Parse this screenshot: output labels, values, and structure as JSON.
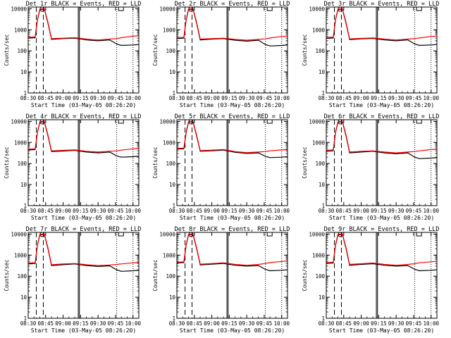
{
  "figure": {
    "background": "#ffffff",
    "colors": {
      "events": "#000000",
      "lld": "#ff0000",
      "axes": "#000000"
    },
    "common": {
      "xlabel": "Start Time (03-May-05 08:26:20)",
      "ylabel": "Counts/sec",
      "x_ticks": [
        "08:30",
        "08:45",
        "09:00",
        "09:15",
        "09:30",
        "09:45",
        "10:00"
      ],
      "y_ticks": [
        "1",
        "10",
        "100",
        "1000",
        "10000"
      ],
      "y_scale": "log",
      "ylim": [
        1,
        12000
      ],
      "xlim": [
        "08:30",
        "10:05"
      ]
    }
  },
  "chart_data": [
    {
      "type": "line",
      "title": "Det_1r BLACK = Events, RED = LLD",
      "series": [
        {
          "name": "Events",
          "color": "#000000",
          "x": [
            "08:30",
            "08:36",
            "08:38",
            "08:40",
            "08:42",
            "08:44",
            "08:47",
            "08:50",
            "09:00",
            "09:10",
            "09:20",
            "09:30",
            "09:40",
            "09:46",
            "09:50",
            "10:00",
            "10:05"
          ],
          "y": [
            400,
            420,
            3000,
            9000,
            9500,
            9000,
            2000,
            350,
            380,
            400,
            330,
            300,
            330,
            210,
            180,
            190,
            200
          ]
        },
        {
          "name": "LLD",
          "color": "#ff0000",
          "x": [
            "08:30",
            "08:36",
            "08:38",
            "08:40",
            "08:42",
            "08:44",
            "08:47",
            "08:50",
            "09:00",
            "09:10",
            "09:20",
            "09:30",
            "09:40",
            "09:46",
            "09:50",
            "10:00",
            "10:05"
          ],
          "y": [
            440,
            460,
            3200,
            9500,
            10000,
            9500,
            2200,
            380,
            400,
            420,
            360,
            330,
            360,
            380,
            420,
            500,
            520
          ]
        }
      ],
      "markers": {
        "dashed": [
          "08:37",
          "08:43"
        ],
        "solid": [
          "09:13",
          "09:14"
        ],
        "dotted": [
          "09:46",
          "10:00"
        ]
      }
    },
    {
      "type": "line",
      "title": "Det_2r BLACK = Events, RED = LLD",
      "series": [
        {
          "name": "Events",
          "color": "#000000",
          "x": [
            "08:30",
            "08:36",
            "08:38",
            "08:40",
            "08:42",
            "08:44",
            "08:47",
            "08:50",
            "09:00",
            "09:10",
            "09:20",
            "09:30",
            "09:40",
            "09:46",
            "09:50",
            "10:00",
            "10:05"
          ],
          "y": [
            380,
            400,
            3000,
            9000,
            9500,
            9000,
            2000,
            330,
            360,
            380,
            320,
            290,
            320,
            200,
            170,
            180,
            190
          ]
        },
        {
          "name": "LLD",
          "color": "#ff0000",
          "x": [
            "08:30",
            "08:36",
            "08:38",
            "08:40",
            "08:42",
            "08:44",
            "08:47",
            "08:50",
            "09:00",
            "09:10",
            "09:20",
            "09:30",
            "09:40",
            "09:46",
            "09:50",
            "10:00",
            "10:05"
          ],
          "y": [
            420,
            440,
            3200,
            9500,
            10000,
            9500,
            2200,
            360,
            380,
            400,
            350,
            320,
            350,
            370,
            410,
            480,
            500
          ]
        }
      ],
      "markers": {
        "dashed": [
          "08:37",
          "08:43"
        ],
        "solid": [
          "09:13",
          "09:14"
        ],
        "dotted": [
          "09:46",
          "10:00"
        ]
      }
    },
    {
      "type": "line",
      "title": "Det_3r BLACK = Events, RED = LLD",
      "series": [
        {
          "name": "Events",
          "color": "#000000",
          "x": [
            "08:30",
            "08:36",
            "08:38",
            "08:40",
            "08:42",
            "08:44",
            "08:47",
            "08:50",
            "09:00",
            "09:10",
            "09:20",
            "09:30",
            "09:40",
            "09:46",
            "09:50",
            "10:00",
            "10:05"
          ],
          "y": [
            390,
            410,
            3000,
            9000,
            9500,
            9000,
            2000,
            340,
            370,
            390,
            330,
            300,
            330,
            210,
            180,
            190,
            200
          ]
        },
        {
          "name": "LLD",
          "color": "#ff0000",
          "x": [
            "08:30",
            "08:36",
            "08:38",
            "08:40",
            "08:42",
            "08:44",
            "08:47",
            "08:50",
            "09:00",
            "09:10",
            "09:20",
            "09:30",
            "09:40",
            "09:46",
            "09:50",
            "10:00",
            "10:05"
          ],
          "y": [
            430,
            450,
            3200,
            9500,
            10000,
            9500,
            2200,
            370,
            390,
            410,
            360,
            330,
            360,
            380,
            410,
            480,
            500
          ]
        }
      ],
      "markers": {
        "dashed": [
          "08:37",
          "08:43"
        ],
        "solid": [
          "09:13",
          "09:14"
        ],
        "dotted": [
          "09:46",
          "10:00"
        ]
      }
    },
    {
      "type": "line",
      "title": "Det_4r BLACK = Events, RED = LLD",
      "series": [
        {
          "name": "Events",
          "color": "#000000",
          "x": [
            "08:30",
            "08:36",
            "08:38",
            "08:40",
            "08:42",
            "08:44",
            "08:47",
            "08:50",
            "09:00",
            "09:10",
            "09:20",
            "09:30",
            "09:40",
            "09:46",
            "09:50",
            "10:00",
            "10:05"
          ],
          "y": [
            440,
            460,
            3000,
            9000,
            9500,
            9000,
            2000,
            370,
            390,
            420,
            350,
            320,
            350,
            230,
            200,
            210,
            220
          ]
        },
        {
          "name": "LLD",
          "color": "#ff0000",
          "x": [
            "08:30",
            "08:36",
            "08:38",
            "08:40",
            "08:42",
            "08:44",
            "08:47",
            "08:50",
            "09:00",
            "09:10",
            "09:20",
            "09:30",
            "09:40",
            "09:46",
            "09:50",
            "10:00",
            "10:05"
          ],
          "y": [
            480,
            500,
            3200,
            9500,
            10000,
            9500,
            2200,
            400,
            420,
            440,
            380,
            350,
            380,
            400,
            430,
            500,
            520
          ]
        }
      ],
      "markers": {
        "dashed": [
          "08:37",
          "08:43"
        ],
        "solid": [
          "09:13",
          "09:14"
        ],
        "dotted": [
          "09:46",
          "10:00"
        ]
      }
    },
    {
      "type": "line",
      "title": "Det_5r BLACK = Events, RED = LLD",
      "series": [
        {
          "name": "Events",
          "color": "#000000",
          "x": [
            "08:30",
            "08:36",
            "08:38",
            "08:40",
            "08:42",
            "08:44",
            "08:47",
            "08:50",
            "09:00",
            "09:10",
            "09:20",
            "09:30",
            "09:40",
            "09:46",
            "09:50",
            "10:00",
            "10:05"
          ],
          "y": [
            480,
            500,
            3000,
            9000,
            9500,
            9000,
            2000,
            380,
            400,
            430,
            340,
            300,
            320,
            220,
            190,
            200,
            210
          ]
        },
        {
          "name": "LLD",
          "color": "#ff0000",
          "x": [
            "08:30",
            "08:36",
            "08:38",
            "08:40",
            "08:42",
            "08:44",
            "08:47",
            "08:50",
            "09:00",
            "09:10",
            "09:20",
            "09:30",
            "09:40",
            "09:46",
            "09:50",
            "10:00",
            "10:05"
          ],
          "y": [
            520,
            540,
            3200,
            9500,
            10000,
            9500,
            2200,
            410,
            430,
            460,
            370,
            330,
            350,
            370,
            400,
            440,
            450
          ]
        }
      ],
      "markers": {
        "dashed": [
          "08:37",
          "08:43"
        ],
        "solid": [
          "09:13",
          "09:14"
        ],
        "dotted": [
          "09:46",
          "10:00"
        ]
      }
    },
    {
      "type": "line",
      "title": "Det_6r BLACK = Events, RED = LLD",
      "series": [
        {
          "name": "Events",
          "color": "#000000",
          "x": [
            "08:30",
            "08:36",
            "08:38",
            "08:40",
            "08:42",
            "08:44",
            "08:47",
            "08:50",
            "09:00",
            "09:10",
            "09:20",
            "09:30",
            "09:40",
            "09:46",
            "09:50",
            "10:00",
            "10:05"
          ],
          "y": [
            380,
            400,
            3000,
            9000,
            9500,
            9000,
            2000,
            320,
            350,
            380,
            320,
            290,
            320,
            200,
            170,
            180,
            190
          ]
        },
        {
          "name": "LLD",
          "color": "#ff0000",
          "x": [
            "08:30",
            "08:36",
            "08:38",
            "08:40",
            "08:42",
            "08:44",
            "08:47",
            "08:50",
            "09:00",
            "09:10",
            "09:20",
            "09:30",
            "09:40",
            "09:46",
            "09:50",
            "10:00",
            "10:05"
          ],
          "y": [
            420,
            440,
            3200,
            9500,
            10000,
            9500,
            2200,
            350,
            380,
            400,
            350,
            320,
            350,
            370,
            400,
            460,
            480
          ]
        }
      ],
      "markers": {
        "dashed": [
          "08:37",
          "08:43"
        ],
        "solid": [
          "09:13",
          "09:14"
        ],
        "dotted": [
          "09:46",
          "10:00"
        ]
      }
    },
    {
      "type": "line",
      "title": "Det_7r BLACK = Events, RED = LLD",
      "series": [
        {
          "name": "Events",
          "color": "#000000",
          "x": [
            "08:30",
            "08:36",
            "08:38",
            "08:40",
            "08:42",
            "08:44",
            "08:47",
            "08:50",
            "09:00",
            "09:10",
            "09:20",
            "09:30",
            "09:40",
            "09:46",
            "09:50",
            "10:00",
            "10:05"
          ],
          "y": [
            380,
            400,
            3000,
            9000,
            9500,
            9000,
            2000,
            320,
            350,
            380,
            320,
            290,
            310,
            200,
            170,
            180,
            190
          ]
        },
        {
          "name": "LLD",
          "color": "#ff0000",
          "x": [
            "08:30",
            "08:36",
            "08:38",
            "08:40",
            "08:42",
            "08:44",
            "08:47",
            "08:50",
            "09:00",
            "09:10",
            "09:20",
            "09:30",
            "09:40",
            "09:46",
            "09:50",
            "10:00",
            "10:05"
          ],
          "y": [
            420,
            440,
            3200,
            9500,
            10000,
            9500,
            2200,
            350,
            380,
            400,
            350,
            320,
            340,
            360,
            380,
            430,
            440
          ]
        }
      ],
      "markers": {
        "dashed": [
          "08:37",
          "08:43"
        ],
        "solid": [
          "09:13",
          "09:14"
        ],
        "dotted": [
          "09:46",
          "10:00"
        ]
      }
    },
    {
      "type": "line",
      "title": "Det_8r BLACK = Events, RED = LLD",
      "series": [
        {
          "name": "Events",
          "color": "#000000",
          "x": [
            "08:30",
            "08:36",
            "08:38",
            "08:40",
            "08:42",
            "08:44",
            "08:47",
            "08:50",
            "09:00",
            "09:10",
            "09:20",
            "09:30",
            "09:40",
            "09:46",
            "09:50",
            "10:00",
            "10:05"
          ],
          "y": [
            420,
            440,
            3000,
            9000,
            9500,
            9000,
            2000,
            340,
            370,
            400,
            330,
            300,
            320,
            210,
            180,
            190,
            200
          ]
        },
        {
          "name": "LLD",
          "color": "#ff0000",
          "x": [
            "08:30",
            "08:36",
            "08:38",
            "08:40",
            "08:42",
            "08:44",
            "08:47",
            "08:50",
            "09:00",
            "09:10",
            "09:20",
            "09:30",
            "09:40",
            "09:46",
            "09:50",
            "10:00",
            "10:05"
          ],
          "y": [
            460,
            480,
            3200,
            9500,
            10000,
            9500,
            2200,
            370,
            400,
            430,
            360,
            330,
            360,
            400,
            440,
            500,
            520
          ]
        }
      ],
      "markers": {
        "dashed": [
          "08:37",
          "08:43"
        ],
        "solid": [
          "09:13",
          "09:14"
        ],
        "dotted": [
          "09:46",
          "10:00"
        ]
      }
    },
    {
      "type": "line",
      "title": "Det_9r BLACK = Events, RED = LLD",
      "series": [
        {
          "name": "Events",
          "color": "#000000",
          "x": [
            "08:30",
            "08:36",
            "08:38",
            "08:40",
            "08:42",
            "08:44",
            "08:47",
            "08:50",
            "09:00",
            "09:10",
            "09:20",
            "09:30",
            "09:40",
            "09:46",
            "09:50",
            "10:00",
            "10:05"
          ],
          "y": [
            400,
            420,
            3000,
            9000,
            9500,
            9000,
            2000,
            330,
            360,
            390,
            330,
            300,
            320,
            210,
            180,
            190,
            200
          ]
        },
        {
          "name": "LLD",
          "color": "#ff0000",
          "x": [
            "08:30",
            "08:36",
            "08:38",
            "08:40",
            "08:42",
            "08:44",
            "08:47",
            "08:50",
            "09:00",
            "09:10",
            "09:20",
            "09:30",
            "09:40",
            "09:46",
            "09:50",
            "10:00",
            "10:05"
          ],
          "y": [
            440,
            460,
            3200,
            9500,
            10000,
            9500,
            2200,
            360,
            390,
            420,
            360,
            330,
            360,
            390,
            430,
            480,
            500
          ]
        }
      ],
      "markers": {
        "dashed": [
          "08:37",
          "08:43"
        ],
        "solid": [
          "09:13",
          "09:14"
        ],
        "dotted": [
          "09:46",
          "10:00"
        ]
      }
    }
  ]
}
